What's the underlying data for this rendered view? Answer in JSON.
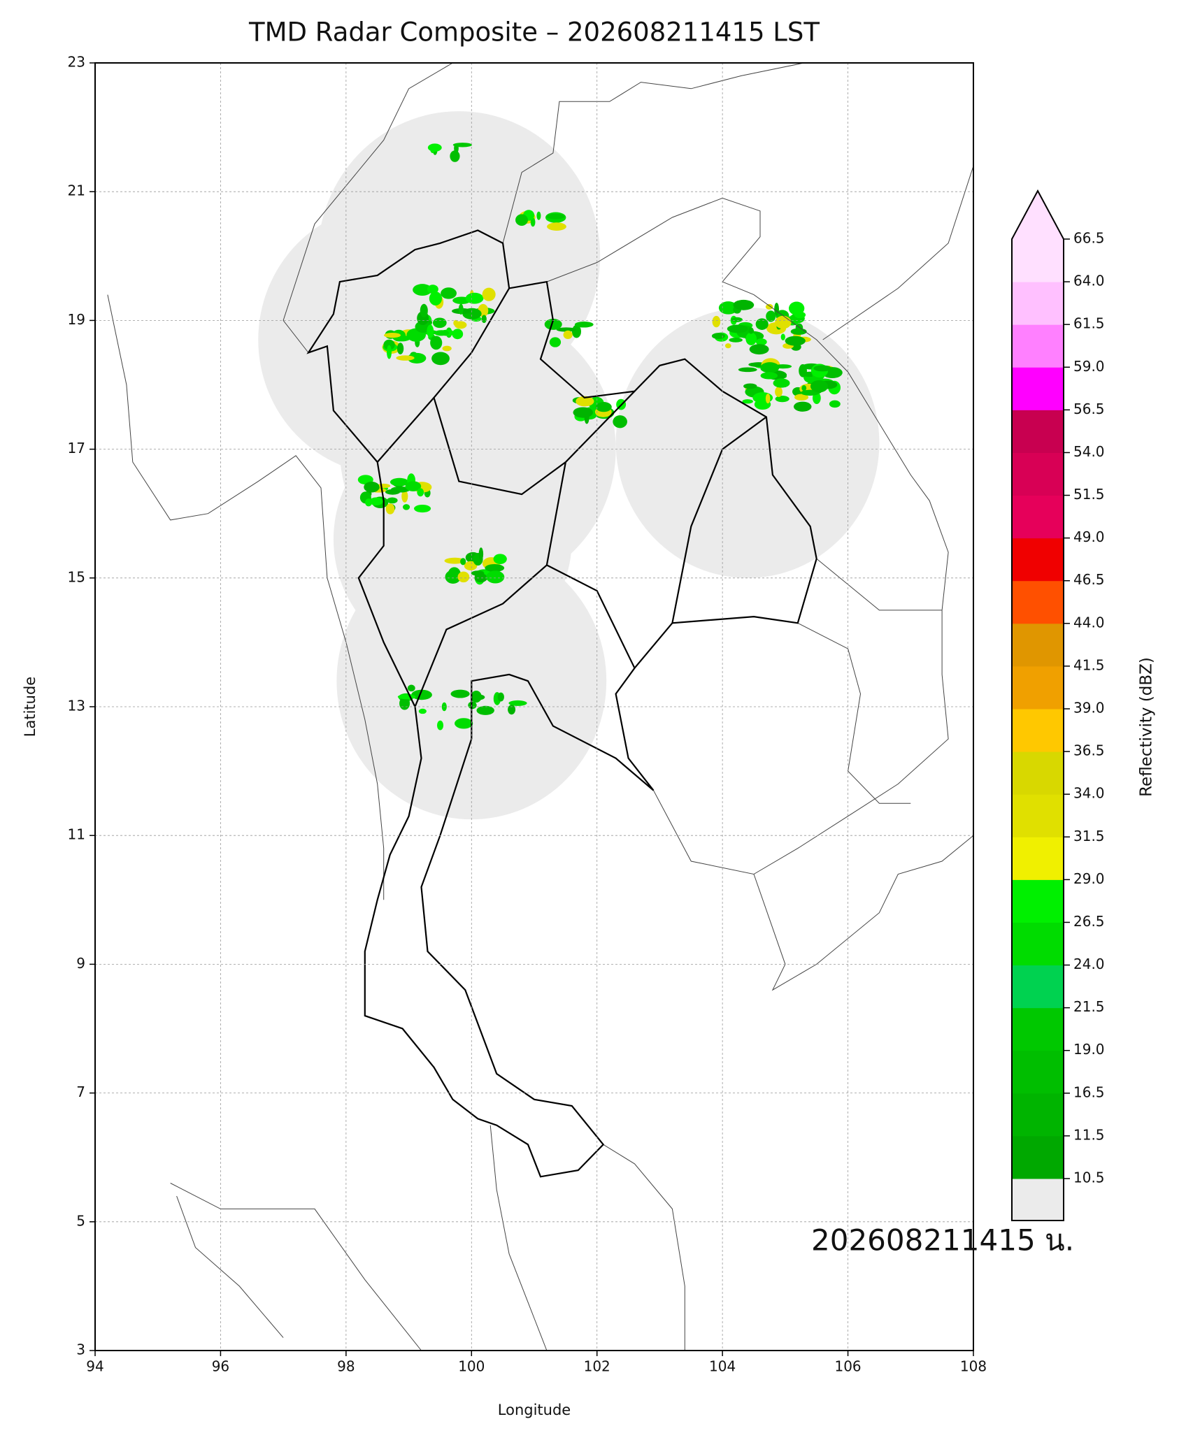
{
  "chart_data": {
    "type": "map",
    "title": "TMD Radar Composite – 202608211415 LST",
    "xlabel": "Longitude",
    "ylabel": "Latitude",
    "xlim": [
      94,
      108
    ],
    "ylim": [
      3,
      23
    ],
    "xticks": [
      94,
      96,
      98,
      100,
      102,
      104,
      106,
      108
    ],
    "yticks": [
      3,
      5,
      7,
      9,
      11,
      13,
      15,
      17,
      19,
      21,
      23
    ],
    "grid": true,
    "annotation": "202608211415 น.",
    "coverage_color": "#ebebeb",
    "colorbar": {
      "label": "Reflectivity (dBZ)",
      "ticks": [
        10.5,
        11.5,
        16.5,
        {
          "value": 19,
          "label": "19.0"
        },
        21.5,
        {
          "value": 24,
          "label": "24.0"
        },
        26.5,
        {
          "value": 29,
          "label": "29.0"
        },
        31.5,
        {
          "value": 34,
          "label": "34.0"
        },
        36.5,
        {
          "value": 39,
          "label": "39.0"
        },
        41.5,
        {
          "value": 44,
          "label": "44.0"
        },
        46.5,
        {
          "value": 49,
          "label": "49.0"
        },
        51.5,
        {
          "value": 54,
          "label": "54.0"
        },
        56.5,
        {
          "value": 59,
          "label": "59.0"
        },
        61.5,
        {
          "value": 64,
          "label": "64.0"
        },
        66.5
      ],
      "colors": [
        "#00a800",
        "#00b400",
        "#00be00",
        "#00c800",
        "#00d250",
        "#00dc00",
        "#00f000",
        "#f0f000",
        "#e0e000",
        "#d8d800",
        "#ffc800",
        "#f0a000",
        "#e09600",
        "#ff5000",
        "#f00000",
        "#e6005a",
        "#d80055",
        "#c80050",
        "#ff00ff",
        "#ff80ff",
        "#ffc0ff",
        "#ffe0ff"
      ],
      "under_color": "#ebebeb",
      "over_color": "#ffe0ff"
    }
  }
}
